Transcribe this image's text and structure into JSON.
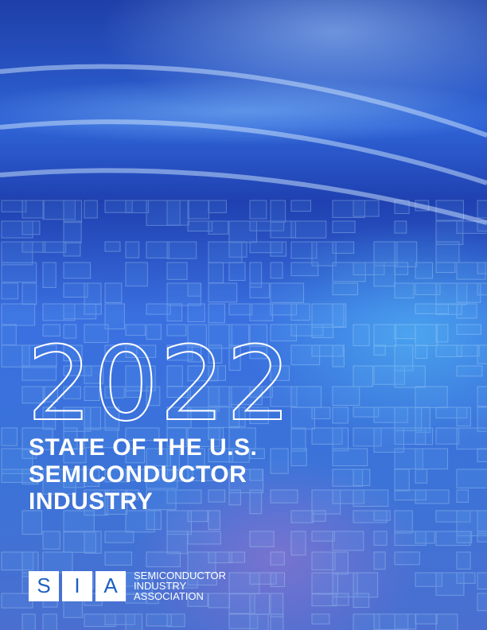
{
  "cover": {
    "year": "2022",
    "title_lines": [
      "STATE OF THE U.S.",
      "SEMICONDUCTOR",
      "INDUSTRY"
    ]
  },
  "logo": {
    "letters": [
      "S",
      "I",
      "A"
    ],
    "org_lines": [
      "SEMICONDUCTOR",
      "INDUSTRY",
      "ASSOCIATION"
    ],
    "color": "#1d5fc0"
  }
}
